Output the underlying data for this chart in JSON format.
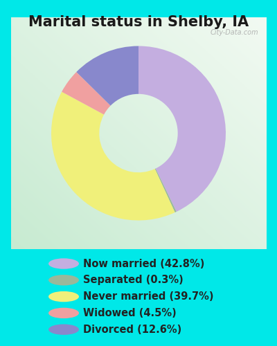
{
  "title": "Marital status in Shelby, IA",
  "slices": [
    42.8,
    0.3,
    39.7,
    4.5,
    12.6
  ],
  "labels": [
    "Now married (42.8%)",
    "Separated (0.3%)",
    "Never married (39.7%)",
    "Widowed (4.5%)",
    "Divorced (12.6%)"
  ],
  "colors": [
    "#c4aee0",
    "#9ab89a",
    "#f0f07a",
    "#f0a0a0",
    "#8888cc"
  ],
  "legend_colors": [
    "#c4aee0",
    "#9ab89a",
    "#f0f07a",
    "#f0a0a0",
    "#8888cc"
  ],
  "title_fontsize": 15,
  "bg_outer": "#00e8e8",
  "watermark": "City-Data.com",
  "start_angle": 90,
  "donut_width": 0.55
}
